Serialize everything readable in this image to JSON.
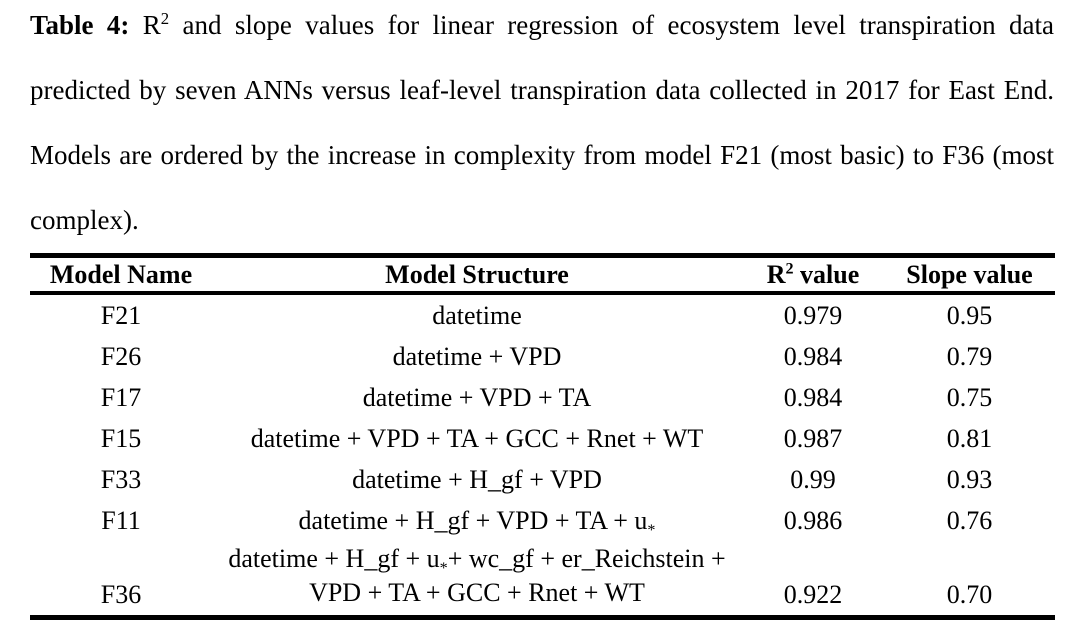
{
  "caption": {
    "l1_bold": "Table 4:",
    "l1_r": "R",
    "l1_sup": "2",
    "l1_rest": "and slope values for linear regression of ecosystem level transpiration data",
    "l2": "predicted by seven ANNs versus leaf-level transpiration data collected in 2017 for East End.",
    "l3": "Models are ordered by the increase in complexity from model F21 (most basic) to F36 (most",
    "l4": "complex)."
  },
  "table": {
    "header": {
      "model_name": "Model Name",
      "model_structure": "Model Structure",
      "r2_base": "R",
      "r2_sup": "2",
      "r2_rest": " value",
      "slope": "Slope value"
    },
    "rows": [
      {
        "name": "F21",
        "structure": "datetime",
        "r2": "0.979",
        "slope": "0.95"
      },
      {
        "name": "F26",
        "structure": "datetime + VPD",
        "r2": "0.984",
        "slope": "0.79"
      },
      {
        "name": "F17",
        "structure": "datetime + VPD + TA",
        "r2": "0.984",
        "slope": "0.75"
      },
      {
        "name": "F15",
        "structure": "datetime + VPD + TA + GCC + Rnet + WT",
        "r2": "0.987",
        "slope": "0.81"
      },
      {
        "name": "F33",
        "structure": "datetime + H_gf + VPD",
        "r2": "0.99",
        "slope": "0.93"
      },
      {
        "name": "F11",
        "structure_pre": "datetime + H_gf + VPD + TA + u",
        "structure_sub": "*",
        "r2": "0.986",
        "slope": "0.76"
      },
      {
        "name": "F36",
        "structure_line1_pre": "datetime + H_gf + u",
        "structure_line1_sub": "*",
        "structure_line1_rest": "+ wc_gf + er_Reichstein +",
        "structure_line2": "VPD + TA + GCC + Rnet + WT",
        "r2": "0.922",
        "slope": "0.70"
      }
    ]
  }
}
